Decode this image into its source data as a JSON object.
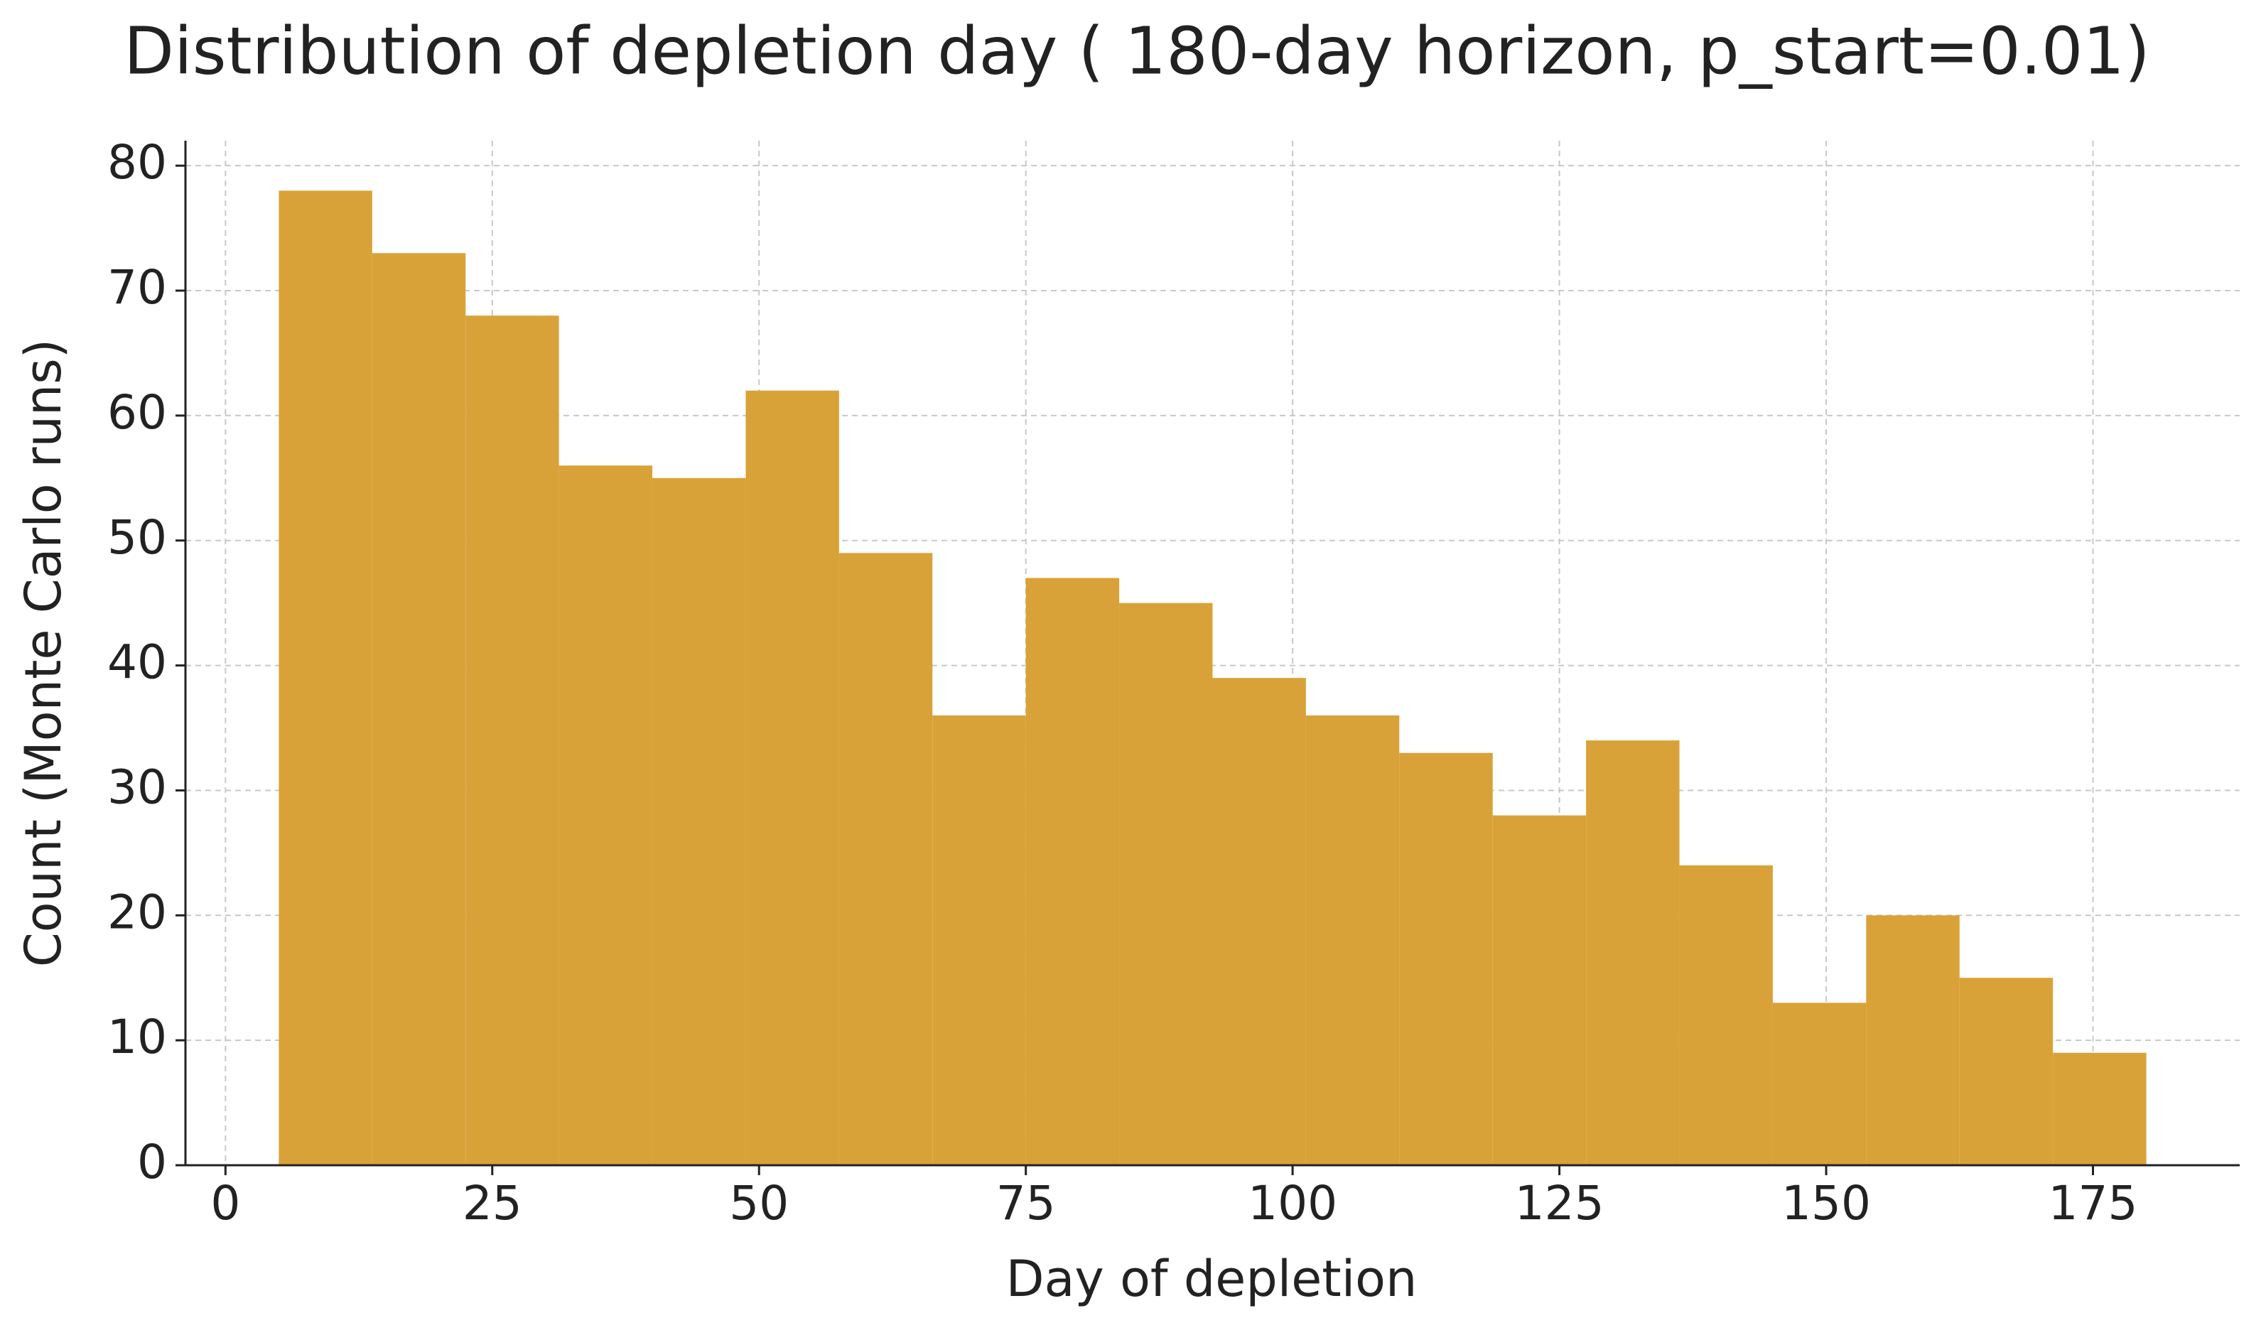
{
  "chart_data": {
    "type": "histogram",
    "title": "Distribution of depletion day ( 180-day horizon, p_start=0.01)",
    "x_label": "Day of depletion",
    "y_label": "Count (Monte Carlo runs)",
    "bins": [
      5,
      13.75,
      22.5,
      31.25,
      40,
      48.75,
      57.5,
      66.25,
      75,
      83.75,
      92.5,
      101.25,
      110,
      118.75,
      127.5,
      136.25,
      145,
      153.75,
      162.5,
      171.25,
      180
    ],
    "values": [
      78,
      73,
      68,
      56,
      55,
      62,
      49,
      36,
      47,
      45,
      39,
      36,
      33,
      28,
      34,
      24,
      13,
      20,
      15,
      9
    ],
    "color": "#d9a238",
    "xlim": [
      -3.75,
      188.75
    ],
    "ylim": [
      0,
      82
    ],
    "xticks": [
      0,
      25,
      50,
      75,
      100,
      125,
      150,
      175
    ],
    "yticks": [
      0,
      10,
      20,
      30,
      40,
      50,
      60,
      70,
      80
    ],
    "grid": true
  }
}
